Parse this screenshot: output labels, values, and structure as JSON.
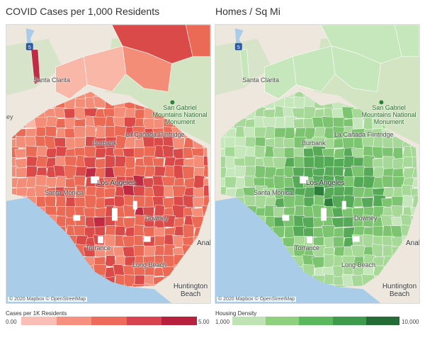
{
  "left_panel": {
    "title": "COVID Cases per 1,000 Residents",
    "attribution": "© 2020 Mapbox © OpenStreetMap",
    "legend_title": "Cases per 1K Residents",
    "legend_min": "0.00",
    "legend_max": "5.00",
    "legend_colors": [
      "#fbbeb6",
      "#f6907f",
      "#ee6a5a",
      "#d8434f",
      "#b8213d"
    ],
    "region_color_scale": [
      "#f9b7a8",
      "#f38d78",
      "#ea6a55",
      "#d94a48",
      "#bf2b42"
    ]
  },
  "right_panel": {
    "title": "Homes / Sq Mi",
    "attribution": "© 2020 Mapbox © OpenStreetMap",
    "legend_title": "Housing Density",
    "legend_min": "1,000",
    "legend_max": "10,000",
    "legend_colors": [
      "#bfe3b4",
      "#8fd07f",
      "#5cb85c",
      "#3e9b4b",
      "#256b35"
    ],
    "region_color_scale": [
      "#c6e6bb",
      "#a6d897",
      "#7cc46f",
      "#55a957",
      "#2f7d3a"
    ]
  },
  "map_labels": {
    "santa_clarita": "Santa Clarita",
    "forest": "San Gabriel Mountains National Monument",
    "burbank": "Burbank",
    "la_canada": "La Cañada Flintridge",
    "los_angeles": "Los Angeles",
    "santa_monica": "Santa Monica",
    "downey": "Downey",
    "torrance": "Torrance",
    "long_beach": "Long Beach",
    "anaheim": "Anah",
    "huntington": "Huntington Beach",
    "edge_fragment": "ey",
    "highway": "5"
  },
  "colors": {
    "ocean": "#a9cde8",
    "land": "#ede7dd",
    "park": "#cfe3c0",
    "highway_shield": "#2b5aa8"
  }
}
